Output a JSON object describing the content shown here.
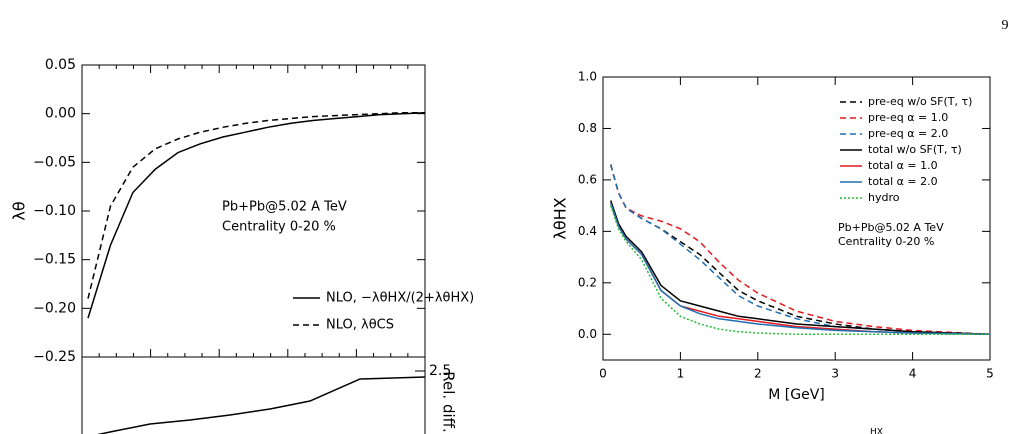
{
  "page_number": "9",
  "footer_fragment": "HX",
  "chart_data": [
    {
      "type": "line",
      "y_label": "λθ",
      "ylim": [
        -0.25,
        0.05
      ],
      "yticks": [
        {
          "value": -0.25,
          "label": "−0.25"
        },
        {
          "value": -0.2,
          "label": "−0.20"
        },
        {
          "value": -0.15,
          "label": "−0.15"
        },
        {
          "value": -0.1,
          "label": "−0.10"
        },
        {
          "value": -0.05,
          "label": "−0.05"
        },
        {
          "value": 0,
          "label": "0.00"
        },
        0.05
      ],
      "annotations": [
        "Pb+Pb@5.02 A TeV",
        "Centrality 0-20 %"
      ],
      "legend": "lower right",
      "panel_label": "Rel. diff.",
      "panel_tick_label": "2.5",
      "series": [
        {
          "name": "NLO, −λθHX/(2+λθHX)",
          "color": "#000000",
          "style": "solid",
          "values": [
            -0.21,
            -0.135,
            -0.081,
            -0.057,
            -0.04,
            -0.031,
            -0.024,
            -0.019,
            -0.014,
            -0.01,
            -0.007,
            -0.005,
            -0.003,
            -0.001,
            0,
            0.001
          ]
        },
        {
          "name": "NLO, λθCS",
          "color": "#000000",
          "style": "dashed",
          "values": [
            -0.19,
            -0.095,
            -0.055,
            -0.036,
            -0.026,
            -0.019,
            -0.014,
            -0.01,
            -0.007,
            -0.005,
            -0.003,
            -0.002,
            -0.001,
            0,
            0.001,
            0.001
          ]
        }
      ]
    },
    {
      "type": "line",
      "x_label": "M [GeV]",
      "y_label": "λθHX",
      "xlim": [
        0,
        5
      ],
      "xticks": [
        0,
        1,
        2,
        3,
        4,
        5
      ],
      "ylim": [
        -0.1,
        1.0
      ],
      "yticks": [
        {
          "value": 0,
          "label": "0.0"
        },
        0.2,
        0.4,
        0.6,
        0.8,
        {
          "value": 1,
          "label": "1.0"
        }
      ],
      "annotations": [
        "Pb+Pb@5.02 A TeV",
        "Centrality 0-20 %"
      ],
      "legend": "upper right",
      "x": [
        0.1,
        0.2,
        0.3,
        0.5,
        0.75,
        1,
        1.25,
        1.5,
        1.75,
        2,
        2.5,
        3,
        3.5,
        4,
        5
      ],
      "series": [
        {
          "name": "pre-eq w/o SF(T, τ)",
          "color": "#000000",
          "style": "dashed",
          "values": [
            0.66,
            0.55,
            0.49,
            0.45,
            0.41,
            0.36,
            0.31,
            0.24,
            0.17,
            0.13,
            0.07,
            0.04,
            0.02,
            0.01,
            0
          ]
        },
        {
          "name": "pre-eq α = 1.0",
          "color": "#e41a1c",
          "style": "dashed",
          "values": [
            0.66,
            0.55,
            0.49,
            0.46,
            0.44,
            0.41,
            0.36,
            0.28,
            0.21,
            0.16,
            0.09,
            0.05,
            0.03,
            0.015,
            0
          ]
        },
        {
          "name": "pre-eq α = 2.0",
          "color": "#1f6fb4",
          "style": "dashed",
          "values": [
            0.66,
            0.55,
            0.49,
            0.45,
            0.41,
            0.35,
            0.29,
            0.22,
            0.15,
            0.11,
            0.06,
            0.03,
            0.02,
            0.01,
            0
          ]
        },
        {
          "name": "total w/o SF(T, τ)",
          "color": "#000000",
          "style": "solid",
          "values": [
            0.52,
            0.43,
            0.38,
            0.32,
            0.19,
            0.13,
            0.11,
            0.09,
            0.07,
            0.06,
            0.04,
            0.03,
            0.02,
            0.01,
            0
          ]
        },
        {
          "name": "total α = 1.0",
          "color": "#e41a1c",
          "style": "solid",
          "values": [
            0.51,
            0.42,
            0.37,
            0.31,
            0.17,
            0.11,
            0.09,
            0.07,
            0.06,
            0.05,
            0.03,
            0.02,
            0.01,
            0.005,
            0
          ]
        },
        {
          "name": "total α = 2.0",
          "color": "#1f6fb4",
          "style": "solid",
          "values": [
            0.51,
            0.42,
            0.37,
            0.31,
            0.17,
            0.11,
            0.08,
            0.06,
            0.05,
            0.04,
            0.025,
            0.015,
            0.01,
            0.005,
            0
          ]
        },
        {
          "name": "hydro",
          "color": "#22bb33",
          "style": "dotted",
          "values": [
            0.5,
            0.41,
            0.36,
            0.29,
            0.14,
            0.07,
            0.04,
            0.02,
            0.01,
            0.005,
            0,
            0,
            0,
            0,
            0
          ]
        }
      ]
    }
  ]
}
